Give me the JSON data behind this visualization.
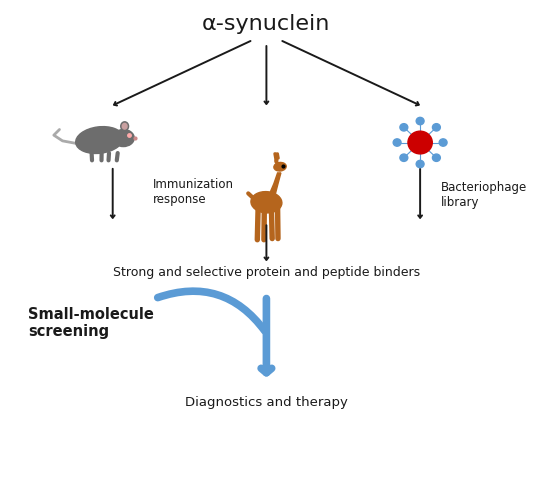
{
  "title": "α-synuclein",
  "title_fontsize": 16,
  "bg_color": "#ffffff",
  "text_color": "#1a1a1a",
  "arrow_color": "#1a1a1a",
  "blue_color": "#5b9bd5",
  "mouse_color": "#6d6d6d",
  "llama_color": "#b5651d",
  "phage_red": "#cc0000",
  "phage_blue": "#5b9bd5",
  "label_immunization": "Immunization\nresponse",
  "label_bacteriophage": "Bacteriophage\nlibrary",
  "label_binders": "Strong and selective protein and peptide binders",
  "label_small": "Small-molecule\nscreening",
  "label_diag": "Diagnostics and therapy"
}
